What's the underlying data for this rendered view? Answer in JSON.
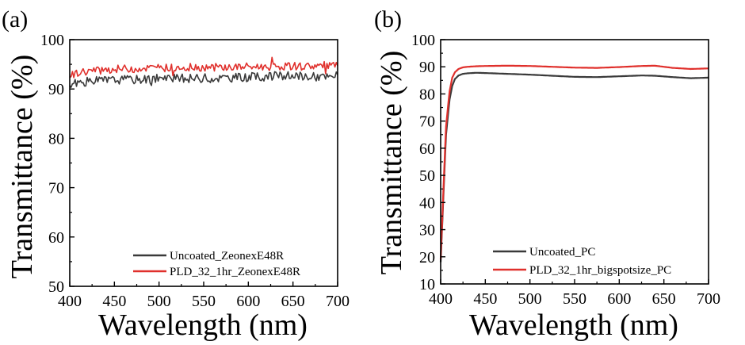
{
  "chart_data": [
    {
      "type": "line",
      "panel_label": "(a)",
      "xlabel": "Wavelength (nm)",
      "ylabel": "Transmittance (%)",
      "xlim": [
        400,
        700
      ],
      "ylim": [
        50,
        100
      ],
      "xticks": [
        400,
        450,
        500,
        550,
        600,
        650,
        700
      ],
      "yticks": [
        50,
        60,
        70,
        80,
        90,
        100
      ],
      "legend_position": "bottom-right",
      "series": [
        {
          "name": "Uncoated_ZeonexE48R",
          "color": "#3a3a3a",
          "noise": 0.9,
          "x": [
            400,
            405,
            410,
            420,
            440,
            460,
            480,
            500,
            520,
            540,
            560,
            580,
            600,
            620,
            640,
            660,
            680,
            690,
            700
          ],
          "y": [
            90.8,
            91.0,
            91.3,
            91.5,
            91.8,
            91.9,
            92.0,
            92.1,
            92.1,
            92.2,
            92.2,
            92.3,
            92.4,
            92.5,
            92.6,
            92.6,
            92.5,
            92.3,
            92.8
          ]
        },
        {
          "name": "PLD_32_1hr_ZeonexE48R",
          "color": "#e0302c",
          "noise": 0.8,
          "x": [
            400,
            405,
            410,
            420,
            440,
            460,
            480,
            500,
            520,
            540,
            560,
            580,
            600,
            620,
            640,
            660,
            680,
            690,
            700
          ],
          "y": [
            92.6,
            93.0,
            93.3,
            93.6,
            93.9,
            94.1,
            94.2,
            94.3,
            94.3,
            94.4,
            94.4,
            94.4,
            94.5,
            94.5,
            94.6,
            94.6,
            94.7,
            94.8,
            94.7
          ]
        }
      ]
    },
    {
      "type": "line",
      "panel_label": "(b)",
      "xlabel": "Wavelength (nm)",
      "ylabel": "Transmittance (%)",
      "xlim": [
        400,
        700
      ],
      "ylim": [
        10,
        100
      ],
      "xticks": [
        400,
        450,
        500,
        550,
        600,
        650,
        700
      ],
      "yticks": [
        10,
        20,
        30,
        40,
        50,
        60,
        70,
        80,
        90,
        100
      ],
      "legend_position": "bottom-right",
      "series": [
        {
          "name": "Uncoated_PC",
          "color": "#3a3a3a",
          "noise": 0,
          "x": [
            400,
            403,
            406,
            410,
            413,
            416,
            420,
            425,
            430,
            440,
            450,
            475,
            500,
            525,
            550,
            575,
            600,
            625,
            640,
            660,
            680,
            700
          ],
          "y": [
            18,
            42,
            65,
            78,
            83,
            85.5,
            86.8,
            87.4,
            87.6,
            87.8,
            87.7,
            87.4,
            87.1,
            86.7,
            86.3,
            86.2,
            86.5,
            86.8,
            86.7,
            86.2,
            85.8,
            86.0
          ]
        },
        {
          "name": "PLD_32_1hr_bigspotsize_PC",
          "color": "#e0302c",
          "noise": 0,
          "x": [
            400,
            403,
            406,
            410,
            413,
            416,
            420,
            425,
            430,
            440,
            450,
            475,
            500,
            525,
            550,
            575,
            600,
            625,
            640,
            660,
            680,
            700
          ],
          "y": [
            19,
            44,
            68,
            81,
            86,
            88,
            89.2,
            89.8,
            90.0,
            90.2,
            90.3,
            90.4,
            90.3,
            90.0,
            89.7,
            89.6,
            89.9,
            90.3,
            90.4,
            89.6,
            89.2,
            89.4
          ]
        }
      ]
    }
  ]
}
